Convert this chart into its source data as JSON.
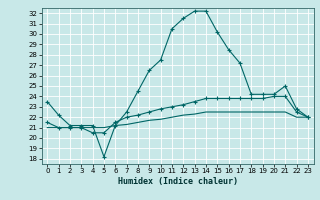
{
  "xlabel": "Humidex (Indice chaleur)",
  "background_color": "#c8e8e8",
  "grid_color": "#ffffff",
  "line_color": "#006666",
  "xlim": [
    -0.5,
    23.5
  ],
  "ylim": [
    17.5,
    32.5
  ],
  "yticks": [
    18,
    19,
    20,
    21,
    22,
    23,
    24,
    25,
    26,
    27,
    28,
    29,
    30,
    31,
    32
  ],
  "xticks": [
    0,
    1,
    2,
    3,
    4,
    5,
    6,
    7,
    8,
    9,
    10,
    11,
    12,
    13,
    14,
    15,
    16,
    17,
    18,
    19,
    20,
    21,
    22,
    23
  ],
  "line1_x": [
    0,
    1,
    2,
    3,
    4,
    5,
    6,
    7,
    8,
    9,
    10,
    11,
    12,
    13,
    14,
    15,
    16,
    17,
    18,
    19,
    20,
    21,
    22,
    23
  ],
  "line1_y": [
    23.5,
    22.2,
    21.2,
    21.2,
    21.2,
    18.2,
    21.2,
    22.5,
    24.5,
    26.5,
    27.5,
    30.5,
    31.5,
    32.2,
    32.2,
    30.2,
    28.5,
    27.2,
    24.2,
    24.2,
    24.2,
    25.0,
    22.8,
    22.0
  ],
  "line2_x": [
    0,
    1,
    2,
    3,
    4,
    5,
    6,
    7,
    8,
    9,
    10,
    11,
    12,
    13,
    14,
    15,
    16,
    17,
    18,
    19,
    20,
    21,
    22,
    23
  ],
  "line2_y": [
    21.5,
    21.0,
    21.0,
    21.0,
    20.5,
    20.5,
    21.5,
    22.0,
    22.2,
    22.5,
    22.8,
    23.0,
    23.2,
    23.5,
    23.8,
    23.8,
    23.8,
    23.8,
    23.8,
    23.8,
    24.0,
    24.0,
    22.5,
    22.0
  ],
  "line3_x": [
    0,
    1,
    2,
    3,
    4,
    5,
    6,
    7,
    8,
    9,
    10,
    11,
    12,
    13,
    14,
    15,
    16,
    17,
    18,
    19,
    20,
    21,
    22,
    23
  ],
  "line3_y": [
    21.0,
    21.0,
    21.0,
    21.0,
    21.0,
    21.0,
    21.2,
    21.3,
    21.5,
    21.7,
    21.8,
    22.0,
    22.2,
    22.3,
    22.5,
    22.5,
    22.5,
    22.5,
    22.5,
    22.5,
    22.5,
    22.5,
    22.0,
    22.0
  ],
  "tick_fontsize": 5.0,
  "xlabel_fontsize": 6.0
}
